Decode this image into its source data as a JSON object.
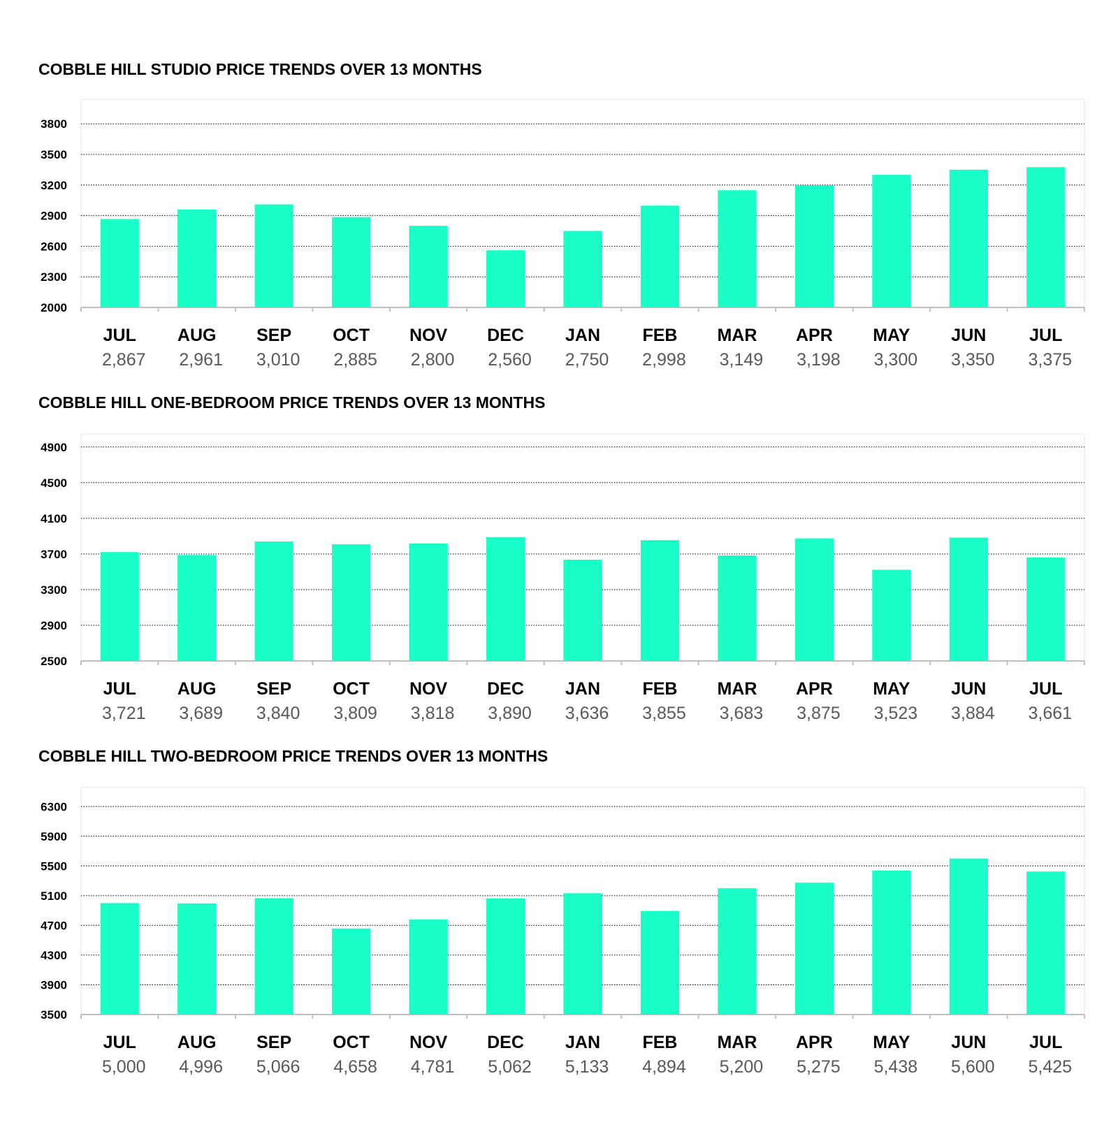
{
  "colors": {
    "bar": "#1affc8",
    "gridline": "#000000",
    "axis": "#bfbfbf",
    "frame": "#e6e6e6",
    "value_text": "#595959"
  },
  "chart_data": [
    {
      "type": "bar",
      "title": "COBBLE HILL STUDIO PRICE TRENDS OVER 13 MONTHS",
      "categories": [
        "JUL",
        "AUG",
        "SEP",
        "OCT",
        "NOV",
        "DEC",
        "JAN",
        "FEB",
        "MAR",
        "APR",
        "MAY",
        "JUN",
        "JUL"
      ],
      "values": [
        2867,
        2961,
        3010,
        2885,
        2800,
        2560,
        2750,
        2998,
        3149,
        3198,
        3300,
        3350,
        3375
      ],
      "value_labels": [
        "2,867",
        "2,961",
        "3,010",
        "2,885",
        "2,800",
        "2,560",
        "2,750",
        "2,998",
        "3,149",
        "3,198",
        "3,300",
        "3,350",
        "3,375"
      ],
      "yticks": [
        2000,
        2300,
        2600,
        2900,
        3200,
        3500,
        3800
      ],
      "ylim": [
        2000,
        4000
      ],
      "xlabel": "",
      "ylabel": "",
      "grid": "horizontal-dotted",
      "legend": "none"
    },
    {
      "type": "bar",
      "title": "COBBLE HILL ONE-BEDROOM PRICE TRENDS OVER 13 MONTHS",
      "categories": [
        "JUL",
        "AUG",
        "SEP",
        "OCT",
        "NOV",
        "DEC",
        "JAN",
        "FEB",
        "MAR",
        "APR",
        "MAY",
        "JUN",
        "JUL"
      ],
      "values": [
        3721,
        3689,
        3840,
        3809,
        3818,
        3890,
        3636,
        3855,
        3683,
        3875,
        3523,
        3884,
        3661
      ],
      "value_labels": [
        "3,721",
        "3,689",
        "3,840",
        "3,809",
        "3,818",
        "3,890",
        "3,636",
        "3,855",
        "3,683",
        "3,875",
        "3,523",
        "3,884",
        "3,661"
      ],
      "yticks": [
        2500,
        2900,
        3300,
        3700,
        4100,
        4500,
        4900
      ],
      "ylim": [
        2500,
        5000
      ],
      "xlabel": "",
      "ylabel": "",
      "grid": "horizontal-dotted",
      "legend": "none"
    },
    {
      "type": "bar",
      "title": "COBBLE HILL TWO-BEDROOM PRICE TRENDS OVER 13 MONTHS",
      "categories": [
        "JUL",
        "AUG",
        "SEP",
        "OCT",
        "NOV",
        "DEC",
        "JAN",
        "FEB",
        "MAR",
        "APR",
        "MAY",
        "JUN",
        "JUL"
      ],
      "values": [
        5000,
        4996,
        5066,
        4658,
        4781,
        5062,
        5133,
        4894,
        5200,
        5275,
        5438,
        5600,
        5425
      ],
      "value_labels": [
        "5,000",
        "4,996",
        "5,066",
        "4,658",
        "4,781",
        "5,062",
        "5,133",
        "4,894",
        "5,200",
        "5,275",
        "5,438",
        "5,600",
        "5,425"
      ],
      "yticks": [
        3500,
        3900,
        4300,
        4700,
        5100,
        5500,
        5900,
        6300
      ],
      "ylim": [
        3500,
        6500
      ],
      "xlabel": "",
      "ylabel": "",
      "grid": "horizontal-dotted",
      "legend": "none"
    }
  ]
}
